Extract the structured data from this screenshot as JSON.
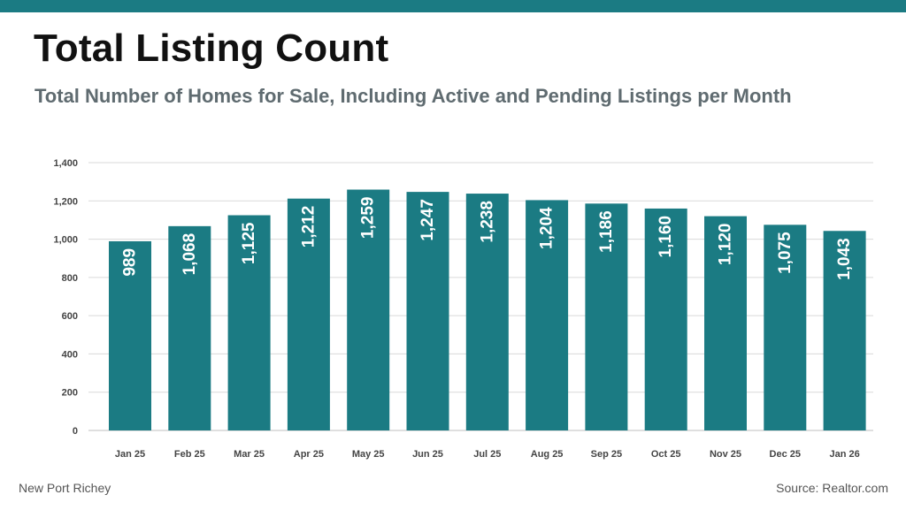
{
  "header": {
    "title": "Total Listing Count",
    "subtitle": "Total Number of Homes for Sale, Including Active and Pending Listings per Month"
  },
  "footer": {
    "location": "New Port Richey",
    "source": "Source: Realtor.com"
  },
  "colors": {
    "accent": "#1b7b83",
    "bar": "#1b7b83",
    "grid": "#d9d9d9",
    "label": "#ffffff"
  },
  "chart_data": {
    "type": "bar",
    "categories": [
      "Jan 25",
      "Feb 25",
      "Mar 25",
      "Apr 25",
      "May 25",
      "Jun 25",
      "Jul 25",
      "Aug 25",
      "Sep 25",
      "Oct 25",
      "Nov 25",
      "Dec 25",
      "Jan 26"
    ],
    "values": [
      989,
      1068,
      1125,
      1212,
      1259,
      1247,
      1238,
      1204,
      1186,
      1160,
      1120,
      1075,
      1043
    ],
    "data_labels": [
      "989",
      "1,068",
      "1,125",
      "1,212",
      "1,259",
      "1,247",
      "1,238",
      "1,204",
      "1,186",
      "1,160",
      "1,120",
      "1,075",
      "1,043"
    ],
    "yticks": [
      0,
      200,
      400,
      600,
      800,
      1000,
      1200,
      1400
    ],
    "ytick_labels": [
      "0",
      "200",
      "400",
      "600",
      "800",
      "1,000",
      "1,200",
      "1,400"
    ],
    "ylim": [
      0,
      1400
    ],
    "grid": true,
    "legend": "none",
    "data_label_orientation": "vertical"
  }
}
